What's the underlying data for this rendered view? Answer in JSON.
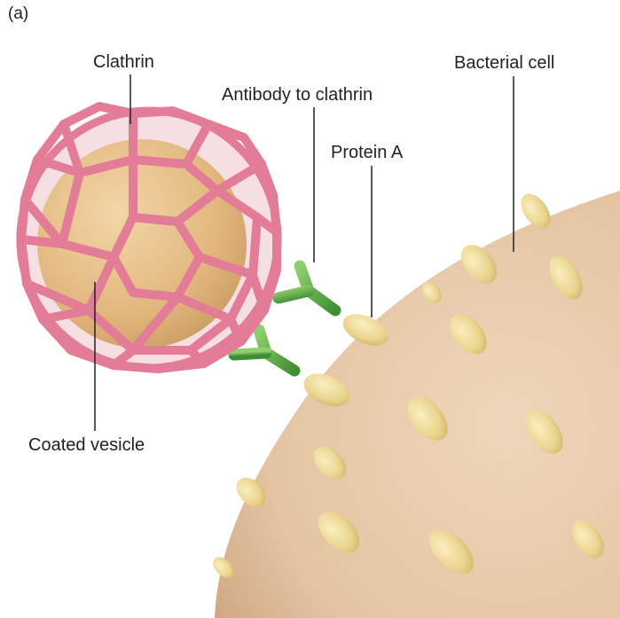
{
  "panel_label": "(a)",
  "labels": {
    "clathrin": "Clathrin",
    "antibody": "Antibody to clathrin",
    "protein_a": "Protein A",
    "bacterial_cell": "Bacterial cell",
    "coated_vesicle": "Coated vesicle"
  },
  "colors": {
    "background": "#ffffff",
    "bacterial_cell": "#e6c9a8",
    "protein_a": "#ead58f",
    "vesicle_core": "#e7c08a",
    "clathrin_lattice": "#e27c97",
    "antibody": "#5eb04c",
    "leader_line": "#222222"
  }
}
